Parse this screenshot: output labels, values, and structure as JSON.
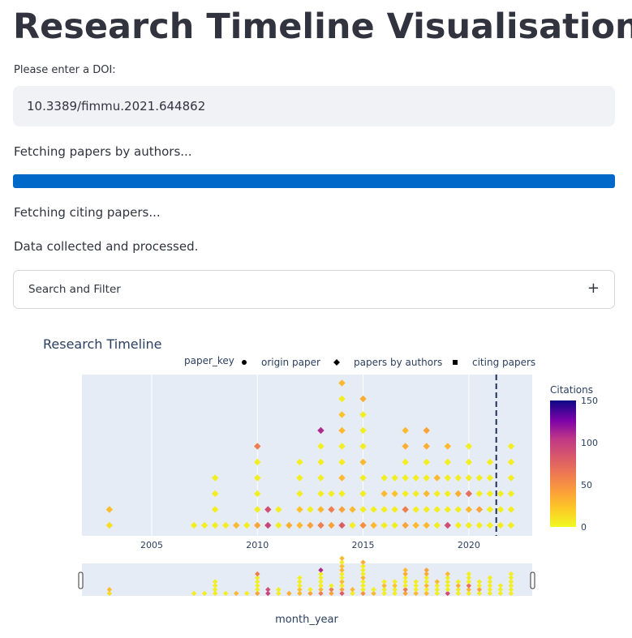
{
  "page_title": "Research Timeline Visualisation",
  "doi_input": {
    "label": "Please enter a DOI:",
    "value": "10.3389/fimmu.2021.644862"
  },
  "status": {
    "fetching_authors": "Fetching papers by authors...",
    "fetching_citing": "Fetching citing papers...",
    "done": "Data collected and processed."
  },
  "progress": {
    "fraction": 1.0,
    "color": "#0068c9"
  },
  "expander": {
    "label": "Search and Filter",
    "icon": "plus-icon"
  },
  "chart_data": {
    "type": "scatter",
    "title": "Research Timeline",
    "xlabel": "month_year",
    "x_ticks": [
      2005,
      2010,
      2015,
      2020
    ],
    "xlim": [
      2001.7,
      2023.0
    ],
    "legend": {
      "title": "paper_key",
      "placement": "top",
      "entries": [
        {
          "name": "origin paper",
          "symbol": "circle"
        },
        {
          "name": "papers by authors",
          "symbol": "diamond"
        },
        {
          "name": "citing papers",
          "symbol": "square"
        }
      ]
    },
    "colorbar": {
      "title": "Citations",
      "ticks": [
        0,
        50,
        100,
        150
      ],
      "range": [
        0,
        150
      ],
      "colorscale": "plasma_r"
    },
    "origin_line_x": 2021.3,
    "columns": [
      {
        "year": 2003.0,
        "count": 2,
        "c": [
          12,
          28
        ]
      },
      {
        "year": 2007.0,
        "count": 1,
        "c": [
          5
        ]
      },
      {
        "year": 2007.5,
        "count": 1,
        "c": [
          5
        ]
      },
      {
        "year": 2008.0,
        "count": 4,
        "c": [
          5,
          5,
          5,
          5
        ]
      },
      {
        "year": 2008.5,
        "count": 1,
        "c": [
          5
        ]
      },
      {
        "year": 2009.0,
        "count": 1,
        "c": [
          30
        ]
      },
      {
        "year": 2009.5,
        "count": 1,
        "c": [
          5
        ]
      },
      {
        "year": 2010.0,
        "count": 6,
        "c": [
          40,
          5,
          5,
          5,
          5,
          60
        ]
      },
      {
        "year": 2010.5,
        "count": 2,
        "c": [
          95,
          90
        ]
      },
      {
        "year": 2011.0,
        "count": 2,
        "c": [
          5,
          5
        ]
      },
      {
        "year": 2011.5,
        "count": 1,
        "c": [
          35
        ]
      },
      {
        "year": 2012.0,
        "count": 5,
        "c": [
          30,
          25,
          5,
          5,
          5
        ]
      },
      {
        "year": 2012.5,
        "count": 2,
        "c": [
          40,
          5
        ]
      },
      {
        "year": 2013.0,
        "count": 7,
        "c": [
          60,
          30,
          5,
          5,
          5,
          5,
          110
        ]
      },
      {
        "year": 2013.5,
        "count": 3,
        "c": [
          40,
          60,
          5
        ]
      },
      {
        "year": 2014.0,
        "count": 10,
        "c": [
          80,
          40,
          5,
          30,
          5,
          5,
          30,
          25,
          5,
          30
        ]
      },
      {
        "year": 2014.5,
        "count": 2,
        "c": [
          5,
          30
        ]
      },
      {
        "year": 2015.0,
        "count": 9,
        "c": [
          50,
          5,
          5,
          5,
          30,
          5,
          5,
          5,
          35
        ]
      },
      {
        "year": 2015.5,
        "count": 2,
        "c": [
          30,
          5
        ]
      },
      {
        "year": 2016.0,
        "count": 4,
        "c": [
          5,
          5,
          30,
          5
        ]
      },
      {
        "year": 2016.5,
        "count": 4,
        "c": [
          5,
          5,
          25,
          5
        ]
      },
      {
        "year": 2017.0,
        "count": 7,
        "c": [
          40,
          60,
          5,
          5,
          5,
          35,
          30
        ]
      },
      {
        "year": 2017.5,
        "count": 4,
        "c": [
          30,
          5,
          5,
          5
        ]
      },
      {
        "year": 2018.0,
        "count": 7,
        "c": [
          30,
          5,
          30,
          5,
          5,
          35,
          40
        ]
      },
      {
        "year": 2018.5,
        "count": 4,
        "c": [
          5,
          5,
          5,
          30
        ]
      },
      {
        "year": 2019.0,
        "count": 6,
        "c": [
          90,
          5,
          5,
          5,
          5,
          30
        ]
      },
      {
        "year": 2019.5,
        "count": 4,
        "c": [
          5,
          5,
          35,
          5
        ]
      },
      {
        "year": 2020.0,
        "count": 6,
        "c": [
          5,
          30,
          70,
          5,
          5,
          5
        ]
      },
      {
        "year": 2020.5,
        "count": 4,
        "c": [
          5,
          40,
          5,
          5
        ]
      },
      {
        "year": 2021.0,
        "count": 5,
        "c": [
          5,
          5,
          5,
          5,
          5
        ]
      },
      {
        "year": 2021.5,
        "count": 3,
        "c": [
          5,
          5,
          5
        ]
      },
      {
        "year": 2022.0,
        "count": 6,
        "c": [
          5,
          5,
          5,
          5,
          5,
          5
        ]
      }
    ]
  }
}
